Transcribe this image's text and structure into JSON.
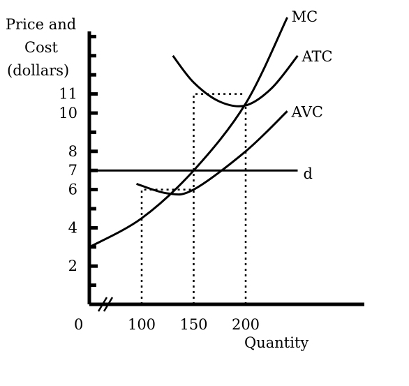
{
  "chart_data": {
    "type": "line",
    "ylabel_lines": [
      "Price and",
      "Cost",
      "(dollars)"
    ],
    "xlabel": "Quantity",
    "origin_label": "0",
    "x_ticks": [
      100,
      150,
      200
    ],
    "y_ticks": [
      2,
      4,
      6,
      7,
      8,
      10,
      11
    ],
    "xlim": [
      50,
      310
    ],
    "ylim": [
      0,
      15
    ],
    "axis_break": true,
    "series": [
      {
        "name": "MC",
        "x": [
          50,
          100,
          150,
          200,
          240
        ],
        "y": [
          3,
          4.5,
          7,
          10.5,
          15
        ]
      },
      {
        "name": "ATC",
        "x": [
          130,
          150,
          175,
          200,
          225,
          250
        ],
        "y": [
          13,
          11.6,
          10.6,
          10.4,
          11.3,
          13
        ]
      },
      {
        "name": "AVC",
        "x": [
          95,
          125,
          150,
          200,
          240
        ],
        "y": [
          6.3,
          5.8,
          6.0,
          8.0,
          10.1
        ]
      },
      {
        "name": "d",
        "x": [
          50,
          250
        ],
        "y": [
          7,
          7
        ]
      }
    ],
    "guides": [
      {
        "points": [
          [
            100,
            0
          ],
          [
            100,
            6
          ],
          [
            150,
            6
          ]
        ]
      },
      {
        "points": [
          [
            150,
            0
          ],
          [
            150,
            11
          ],
          [
            200,
            11
          ]
        ]
      },
      {
        "points": [
          [
            200,
            0
          ],
          [
            200,
            10.5
          ]
        ]
      }
    ]
  }
}
